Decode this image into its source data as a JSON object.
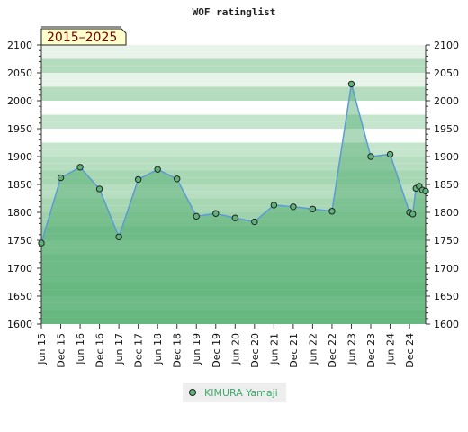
{
  "chart_data": {
    "type": "area",
    "title": "WOF ratinglist",
    "period_label": "2015–2025",
    "ylim": [
      1600,
      2100
    ],
    "y_ticks": [
      1600,
      1650,
      1700,
      1750,
      1800,
      1850,
      1900,
      1950,
      2000,
      2050,
      2100
    ],
    "x_ticks": [
      "Jun 15",
      "Dec 15",
      "Jun 16",
      "Dec 16",
      "Jun 17",
      "Dec 17",
      "Jun 18",
      "Dec 18",
      "Jun 19",
      "Dec 19",
      "Jun 20",
      "Dec 20",
      "Jun 21",
      "Dec 21",
      "Jun 22",
      "Dec 22",
      "Jun 23",
      "Dec 23",
      "Jun 24",
      "Dec 24"
    ],
    "series": [
      {
        "name": "KIMURA Yamaji",
        "color": "#5b9bd5",
        "marker_color": "#5fb37a",
        "points": [
          [
            "2015-06",
            1745
          ],
          [
            "2015-12",
            1862
          ],
          [
            "2016-06",
            1881
          ],
          [
            "2016-12",
            1842
          ],
          [
            "2017-06",
            1756
          ],
          [
            "2017-12",
            1859
          ],
          [
            "2018-06",
            1877
          ],
          [
            "2018-12",
            1860
          ],
          [
            "2019-06",
            1793
          ],
          [
            "2019-12",
            1798
          ],
          [
            "2020-06",
            1790
          ],
          [
            "2020-12",
            1783
          ],
          [
            "2021-06",
            1813
          ],
          [
            "2021-12",
            1810
          ],
          [
            "2022-06",
            1806
          ],
          [
            "2022-12",
            1802
          ],
          [
            "2023-06",
            2030
          ],
          [
            "2023-12",
            1900
          ],
          [
            "2024-06",
            1904
          ],
          [
            "2024-12",
            1800
          ],
          [
            "2025-01",
            1797
          ],
          [
            "2025-02",
            1843
          ],
          [
            "2025-03",
            1847
          ],
          [
            "2025-04",
            1840
          ],
          [
            "2025-05",
            1838
          ]
        ]
      }
    ],
    "grid": true,
    "legend_position": "bottom"
  }
}
